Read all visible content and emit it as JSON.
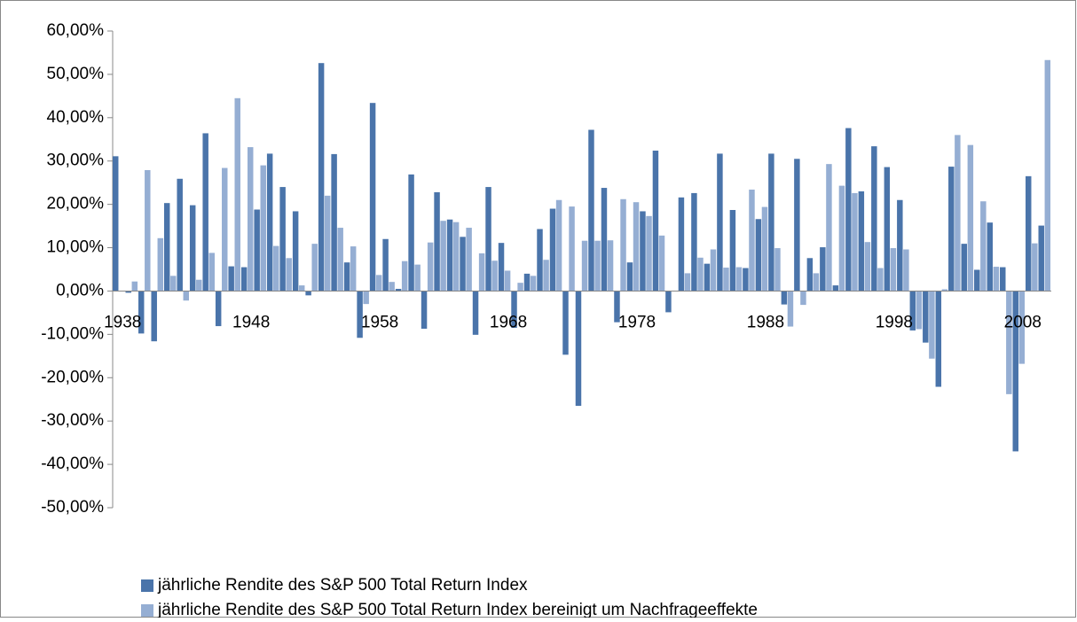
{
  "chart_data": {
    "type": "bar",
    "categories": [
      "1938",
      null,
      null,
      null,
      null,
      null,
      null,
      null,
      null,
      null,
      "1948",
      null,
      null,
      null,
      null,
      null,
      null,
      null,
      null,
      null,
      "1958",
      null,
      null,
      null,
      null,
      null,
      null,
      null,
      null,
      null,
      "1968",
      null,
      null,
      null,
      null,
      null,
      null,
      null,
      null,
      null,
      "1978",
      null,
      null,
      null,
      null,
      null,
      null,
      null,
      null,
      null,
      "1988",
      null,
      null,
      null,
      null,
      null,
      null,
      null,
      null,
      null,
      "1998",
      null,
      null,
      null,
      null,
      null,
      null,
      null,
      null,
      null,
      "2008",
      null,
      null
    ],
    "series": [
      {
        "name": "jährliche Rendite des S&P 500 Total Return Index",
        "color": "#4a74aa",
        "values": [
          31.1,
          -0.4,
          -9.8,
          -11.6,
          20.3,
          25.9,
          19.8,
          36.4,
          -8.1,
          5.7,
          5.5,
          18.8,
          31.7,
          24.0,
          18.4,
          -1.0,
          52.6,
          31.6,
          6.6,
          -10.8,
          43.4,
          12.0,
          0.5,
          26.9,
          -8.7,
          22.8,
          16.5,
          12.5,
          -10.1,
          24.0,
          11.1,
          -8.5,
          4.0,
          14.3,
          19.0,
          -14.7,
          -26.5,
          37.2,
          23.8,
          -7.2,
          6.6,
          18.4,
          32.4,
          -4.9,
          21.6,
          22.6,
          6.3,
          31.7,
          18.7,
          5.3,
          16.6,
          31.7,
          -3.1,
          30.5,
          7.6,
          10.1,
          1.3,
          37.6,
          23.0,
          33.4,
          28.6,
          21.0,
          -9.1,
          -11.9,
          -22.1,
          28.7,
          10.9,
          4.9,
          15.8,
          5.5,
          -37.0,
          26.5,
          15.1
        ]
      },
      {
        "name": "jährliche Rendite des S&P 500 Total Return Index bereinigt um Nachfrageeffekte",
        "color": "#95aed3",
        "values": [
          0.0,
          2.2,
          27.9,
          12.2,
          3.5,
          -2.2,
          2.6,
          8.8,
          28.4,
          44.5,
          33.2,
          29.0,
          10.4,
          7.6,
          1.3,
          10.9,
          22.0,
          14.6,
          10.3,
          -3.0,
          3.7,
          2.1,
          6.9,
          6.1,
          11.2,
          16.2,
          15.9,
          14.6,
          8.7,
          7.0,
          4.7,
          1.9,
          3.5,
          7.2,
          21.0,
          19.5,
          11.6,
          11.6,
          11.7,
          21.2,
          20.5,
          17.3,
          12.8,
          0.0,
          4.1,
          7.7,
          9.6,
          5.4,
          5.5,
          23.4,
          19.4,
          9.9,
          -8.2,
          -3.2,
          4.1,
          29.3,
          24.3,
          22.6,
          11.3,
          5.3,
          9.9,
          9.6,
          -8.8,
          -15.6,
          0.4,
          36.0,
          33.7,
          20.7,
          5.6,
          -23.8,
          -16.8,
          11.0,
          53.3
        ]
      }
    ],
    "ylim": [
      -50,
      60
    ],
    "yticks": [
      {
        "value": -50,
        "label": "-50,00%"
      },
      {
        "value": -40,
        "label": "-40,00%"
      },
      {
        "value": -30,
        "label": "-30,00%"
      },
      {
        "value": -20,
        "label": "-20,00%"
      },
      {
        "value": -10,
        "label": "-10,00%"
      },
      {
        "value": 0,
        "label": "0,00%"
      },
      {
        "value": 10,
        "label": "10,00%"
      },
      {
        "value": 20,
        "label": "20,00%"
      },
      {
        "value": 30,
        "label": "30,00%"
      },
      {
        "value": 40,
        "label": "40,00%"
      },
      {
        "value": 50,
        "label": "50,00%"
      },
      {
        "value": 60,
        "label": "60,00%"
      }
    ],
    "grid": false,
    "legend": "bottom"
  }
}
